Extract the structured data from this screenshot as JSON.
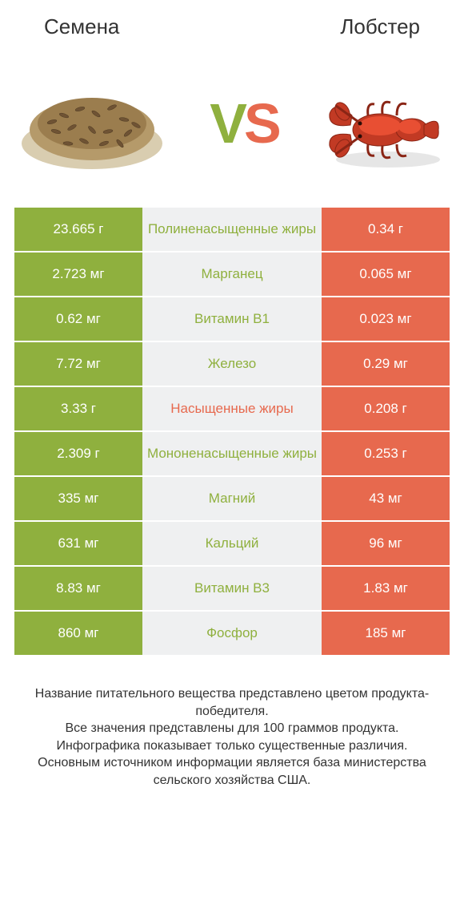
{
  "header": {
    "left_title": "Семена",
    "right_title": "Лобстер"
  },
  "vs": {
    "v": "V",
    "s": "S"
  },
  "colors": {
    "winner_left": "#8fb03e",
    "winner_right": "#e7694e",
    "mid_bg": "#eff0f1",
    "text": "#333333"
  },
  "rows": [
    {
      "left": "23.665 г",
      "label": "Полиненасыщенные жиры",
      "label_color": "green",
      "right": "0.34 г"
    },
    {
      "left": "2.723 мг",
      "label": "Марганец",
      "label_color": "green",
      "right": "0.065 мг"
    },
    {
      "left": "0.62 мг",
      "label": "Витамин B1",
      "label_color": "green",
      "right": "0.023 мг"
    },
    {
      "left": "7.72 мг",
      "label": "Железо",
      "label_color": "green",
      "right": "0.29 мг"
    },
    {
      "left": "3.33 г",
      "label": "Насыщенные жиры",
      "label_color": "red",
      "right": "0.208 г"
    },
    {
      "left": "2.309 г",
      "label": "Мононенасыщенные жиры",
      "label_color": "green",
      "right": "0.253 г"
    },
    {
      "left": "335 мг",
      "label": "Магний",
      "label_color": "green",
      "right": "43 мг"
    },
    {
      "left": "631 мг",
      "label": "Кальций",
      "label_color": "green",
      "right": "96 мг"
    },
    {
      "left": "8.83 мг",
      "label": "Витамин B3",
      "label_color": "green",
      "right": "1.83 мг"
    },
    {
      "left": "860 мг",
      "label": "Фосфор",
      "label_color": "green",
      "right": "185 мг"
    }
  ],
  "footer": {
    "line1": "Название питательного вещества представлено цветом продукта-победителя.",
    "line2": "Все значения представлены для 100 граммов продукта.",
    "line3": "Инфографика показывает только существенные различия.",
    "line4": "Основным источником информации является база министерства сельского хозяйства США."
  }
}
